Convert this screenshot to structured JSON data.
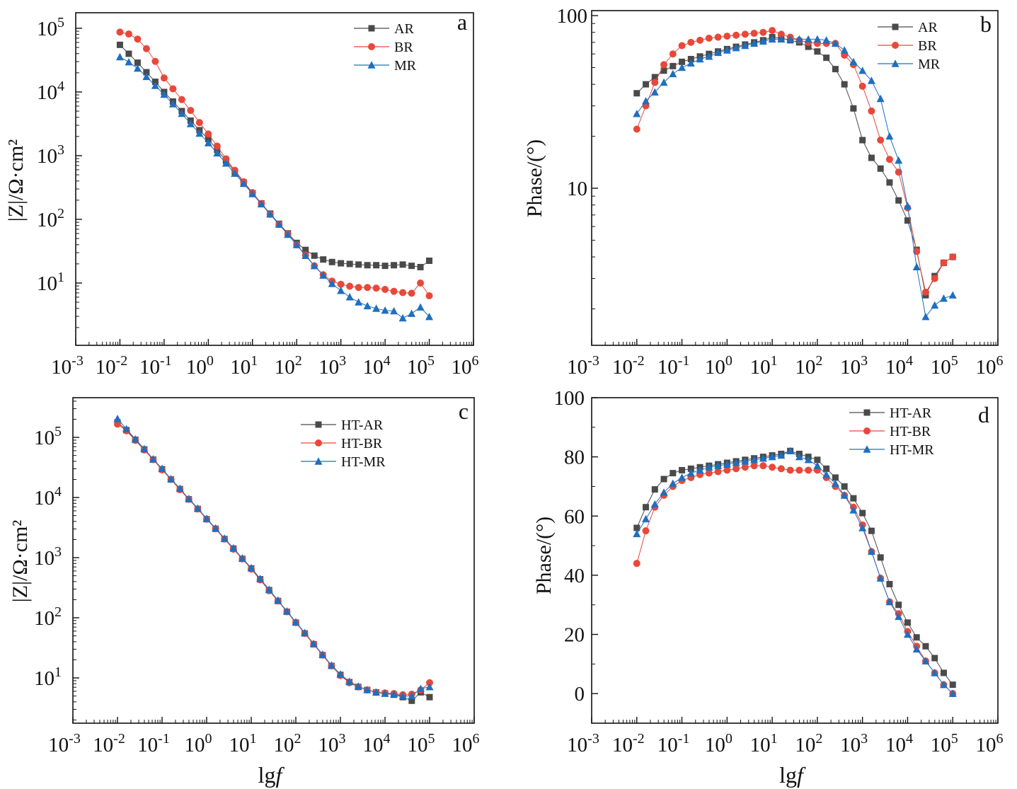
{
  "chart_data": [
    {
      "panel": "a",
      "type": "scatter",
      "title": "a",
      "xlabel": "",
      "ylabel": "|Z|/Ω·cm²",
      "yscale": "log",
      "xlim_lg": [
        -3,
        6
      ],
      "ylim_lg": [
        0.022,
        5.244
      ],
      "xticks_lg": [
        -3,
        -2,
        -1,
        0,
        1,
        2,
        3,
        4,
        5,
        6
      ],
      "yticks_lg": [
        1,
        2,
        3,
        4,
        5
      ],
      "legend_placement": "top-right",
      "x_lg": [
        -2,
        -1.8,
        -1.6,
        -1.4,
        -1.2,
        -1,
        -0.8,
        -0.6,
        -0.4,
        -0.2,
        0,
        0.2,
        0.4,
        0.6,
        0.8,
        1,
        1.2,
        1.4,
        1.6,
        1.8,
        2,
        2.2,
        2.4,
        2.6,
        2.8,
        3,
        3.2,
        3.4,
        3.6,
        3.8,
        4,
        4.2,
        4.4,
        4.6,
        4.8,
        5
      ],
      "series": [
        {
          "name": "AR",
          "marker": "square",
          "color": "#4a4a4a",
          "y_lg": [
            4.74,
            4.6,
            4.46,
            4.31,
            4.16,
            4.0,
            3.85,
            3.7,
            3.55,
            3.4,
            3.26,
            3.09,
            2.92,
            2.75,
            2.58,
            2.41,
            2.25,
            2.09,
            1.93,
            1.78,
            1.63,
            1.52,
            1.43,
            1.37,
            1.33,
            1.31,
            1.3,
            1.29,
            1.28,
            1.28,
            1.27,
            1.28,
            1.29,
            1.27,
            1.25,
            1.35
          ]
        },
        {
          "name": "BR",
          "marker": "circle",
          "color": "#e8483a",
          "y_lg": [
            4.94,
            4.91,
            4.83,
            4.68,
            4.48,
            4.22,
            4.05,
            3.88,
            3.71,
            3.52,
            3.34,
            3.15,
            2.95,
            2.77,
            2.59,
            2.42,
            2.25,
            2.08,
            1.92,
            1.77,
            1.6,
            1.44,
            1.27,
            1.13,
            1.03,
            0.98,
            0.95,
            0.93,
            0.93,
            0.92,
            0.9,
            0.87,
            0.85,
            0.84,
            1.0,
            0.8
          ]
        },
        {
          "name": "MR",
          "marker": "triangle",
          "color": "#1f6fbf",
          "y_lg": [
            4.55,
            4.47,
            4.37,
            4.24,
            4.1,
            3.96,
            3.81,
            3.66,
            3.5,
            3.35,
            3.2,
            3.04,
            2.88,
            2.72,
            2.56,
            2.4,
            2.24,
            2.08,
            1.92,
            1.76,
            1.6,
            1.43,
            1.27,
            1.12,
            0.99,
            0.88,
            0.78,
            0.7,
            0.64,
            0.6,
            0.57,
            0.56,
            0.45,
            0.52,
            0.62,
            0.47
          ]
        }
      ]
    },
    {
      "panel": "b",
      "type": "scatter",
      "title": "b",
      "xlabel": "",
      "ylabel": "Phase/(°)",
      "yscale": "log",
      "xlim_lg": [
        -3,
        6
      ],
      "ylim_lg": [
        0.09,
        2.029
      ],
      "xticks_lg": [
        -3,
        -2,
        -1,
        0,
        1,
        2,
        3,
        4,
        5,
        6
      ],
      "yticks": [
        10,
        100
      ],
      "legend_placement": "top-right",
      "x_lg": [
        -2,
        -1.8,
        -1.6,
        -1.4,
        -1.2,
        -1,
        -0.8,
        -0.6,
        -0.4,
        -0.2,
        0,
        0.2,
        0.4,
        0.6,
        0.8,
        1,
        1.2,
        1.4,
        1.6,
        1.8,
        2,
        2.2,
        2.4,
        2.6,
        2.8,
        3,
        3.2,
        3.4,
        3.6,
        3.8,
        4,
        4.2,
        4.4,
        4.6,
        4.8,
        5
      ],
      "series": [
        {
          "name": "AR",
          "marker": "square",
          "color": "#4a4a4a",
          "y": [
            35.5,
            40,
            44,
            48,
            51,
            54,
            56,
            58,
            60,
            62,
            64,
            66,
            68,
            70,
            72,
            75,
            74,
            72,
            70,
            66,
            62,
            57,
            49,
            40,
            29,
            19,
            15,
            13,
            10.8,
            8.5,
            6.5,
            4.4,
            2.4,
            3.1,
            3.7,
            4.0
          ]
        },
        {
          "name": "BR",
          "marker": "circle",
          "color": "#e8483a",
          "y": [
            22,
            30,
            41,
            52,
            60,
            67,
            70,
            72,
            74,
            75,
            76,
            77,
            78,
            79,
            80,
            82,
            78,
            75,
            72,
            70,
            69,
            69,
            69,
            59,
            52,
            39,
            28,
            19,
            14.7,
            12.4,
            7.7,
            4.3,
            2.5,
            3.0,
            3.7,
            4.0
          ]
        },
        {
          "name": "MR",
          "marker": "triangle",
          "color": "#1f6fbf",
          "y": [
            27,
            32,
            36,
            41,
            46,
            50,
            53,
            56,
            58,
            61,
            63,
            65,
            67,
            69,
            71,
            73,
            73,
            73,
            73,
            73,
            73,
            72,
            69,
            63,
            54,
            48,
            42,
            33,
            20,
            14.5,
            7.9,
            3.5,
            1.8,
            2.1,
            2.3,
            2.4
          ]
        }
      ]
    },
    {
      "panel": "c",
      "type": "scatter",
      "title": "c",
      "xlabel": "lgf",
      "ylabel": "|Z|/Ω·cm²",
      "yscale": "log",
      "xlim_lg": [
        -3,
        6
      ],
      "ylim_lg": [
        0.247,
        5.66
      ],
      "xticks_lg": [
        -3,
        -2,
        -1,
        0,
        1,
        2,
        3,
        4,
        5,
        6
      ],
      "yticks_lg": [
        1,
        2,
        3,
        4,
        5
      ],
      "legend_placement": "top-right",
      "x_lg": [
        -2,
        -1.8,
        -1.6,
        -1.4,
        -1.2,
        -1,
        -0.8,
        -0.6,
        -0.4,
        -0.2,
        0,
        0.2,
        0.4,
        0.6,
        0.8,
        1,
        1.2,
        1.4,
        1.6,
        1.8,
        2,
        2.2,
        2.4,
        2.6,
        2.8,
        3,
        3.2,
        3.4,
        3.6,
        3.8,
        4,
        4.2,
        4.4,
        4.6,
        4.8,
        5
      ],
      "series": [
        {
          "name": "HT-AR",
          "marker": "square",
          "color": "#4a4a4a",
          "y_lg": [
            5.25,
            5.12,
            4.96,
            4.8,
            4.63,
            4.47,
            4.3,
            4.14,
            3.97,
            3.81,
            3.64,
            3.48,
            3.31,
            3.15,
            2.98,
            2.82,
            2.64,
            2.46,
            2.28,
            2.1,
            1.92,
            1.74,
            1.56,
            1.38,
            1.2,
            1.05,
            0.93,
            0.85,
            0.8,
            0.76,
            0.74,
            0.72,
            0.68,
            0.62,
            0.76,
            0.68
          ]
        },
        {
          "name": "HT-BR",
          "marker": "circle",
          "color": "#e8483a",
          "y_lg": [
            5.22,
            5.11,
            4.95,
            4.79,
            4.63,
            4.46,
            4.3,
            4.13,
            3.97,
            3.81,
            3.64,
            3.48,
            3.31,
            3.14,
            2.98,
            2.81,
            2.63,
            2.45,
            2.28,
            2.1,
            1.92,
            1.74,
            1.56,
            1.38,
            1.2,
            1.04,
            0.92,
            0.85,
            0.8,
            0.76,
            0.75,
            0.74,
            0.72,
            0.73,
            0.8,
            0.92
          ]
        },
        {
          "name": "HT-MR",
          "marker": "triangle",
          "color": "#1f6fbf",
          "y_lg": [
            5.31,
            5.14,
            4.97,
            4.81,
            4.64,
            4.48,
            4.31,
            4.15,
            3.98,
            3.82,
            3.65,
            3.49,
            3.32,
            3.16,
            2.99,
            2.83,
            2.65,
            2.47,
            2.29,
            2.11,
            1.93,
            1.75,
            1.57,
            1.39,
            1.21,
            1.06,
            0.94,
            0.86,
            0.8,
            0.76,
            0.74,
            0.73,
            0.7,
            0.7,
            0.82,
            0.85
          ]
        }
      ]
    },
    {
      "panel": "d",
      "type": "scatter",
      "title": "d",
      "xlabel": "lgf",
      "ylabel": "Phase/(°)",
      "yscale": "linear",
      "xlim_lg": [
        -3,
        6
      ],
      "ylim": [
        -10,
        100
      ],
      "xticks_lg": [
        -3,
        -2,
        -1,
        0,
        1,
        2,
        3,
        4,
        5,
        6
      ],
      "yticks": [
        0,
        20,
        40,
        60,
        80,
        100
      ],
      "legend_placement": "top-right",
      "x_lg": [
        -2,
        -1.8,
        -1.6,
        -1.4,
        -1.2,
        -1,
        -0.8,
        -0.6,
        -0.4,
        -0.2,
        0,
        0.2,
        0.4,
        0.6,
        0.8,
        1,
        1.2,
        1.4,
        1.6,
        1.8,
        2,
        2.2,
        2.4,
        2.6,
        2.8,
        3,
        3.2,
        3.4,
        3.6,
        3.8,
        4,
        4.2,
        4.4,
        4.6,
        4.8,
        5
      ],
      "series": [
        {
          "name": "HT-AR",
          "marker": "square",
          "color": "#4a4a4a",
          "y": [
            56,
            63,
            69,
            72.5,
            74.5,
            75.5,
            76,
            76.5,
            77,
            77.5,
            78,
            78.5,
            79,
            79.5,
            80,
            80.5,
            81,
            82,
            81,
            80,
            79,
            76,
            73,
            70,
            66,
            61,
            55,
            46,
            37,
            30,
            24,
            19,
            16,
            12,
            7,
            3
          ]
        },
        {
          "name": "HT-BR",
          "marker": "circle",
          "color": "#e8483a",
          "y": [
            44,
            55,
            63,
            67,
            70,
            72,
            73,
            74,
            74.5,
            75,
            75.5,
            76,
            76.5,
            77,
            77,
            76.5,
            76,
            75.5,
            75.5,
            75.5,
            75.5,
            73,
            70,
            67,
            63,
            57,
            48,
            39,
            31,
            27,
            21,
            16,
            11,
            7,
            3,
            0
          ]
        },
        {
          "name": "HT-MR",
          "marker": "triangle",
          "color": "#1f6fbf",
          "y": [
            54,
            59,
            64,
            68,
            71,
            73,
            74.5,
            75.5,
            76.5,
            77,
            77.5,
            78,
            78.5,
            79,
            79.5,
            80,
            80.5,
            82,
            80,
            79,
            77,
            74,
            71,
            67,
            62,
            56,
            48,
            39,
            31,
            26,
            20,
            15,
            11,
            7,
            3,
            0
          ]
        }
      ]
    }
  ]
}
